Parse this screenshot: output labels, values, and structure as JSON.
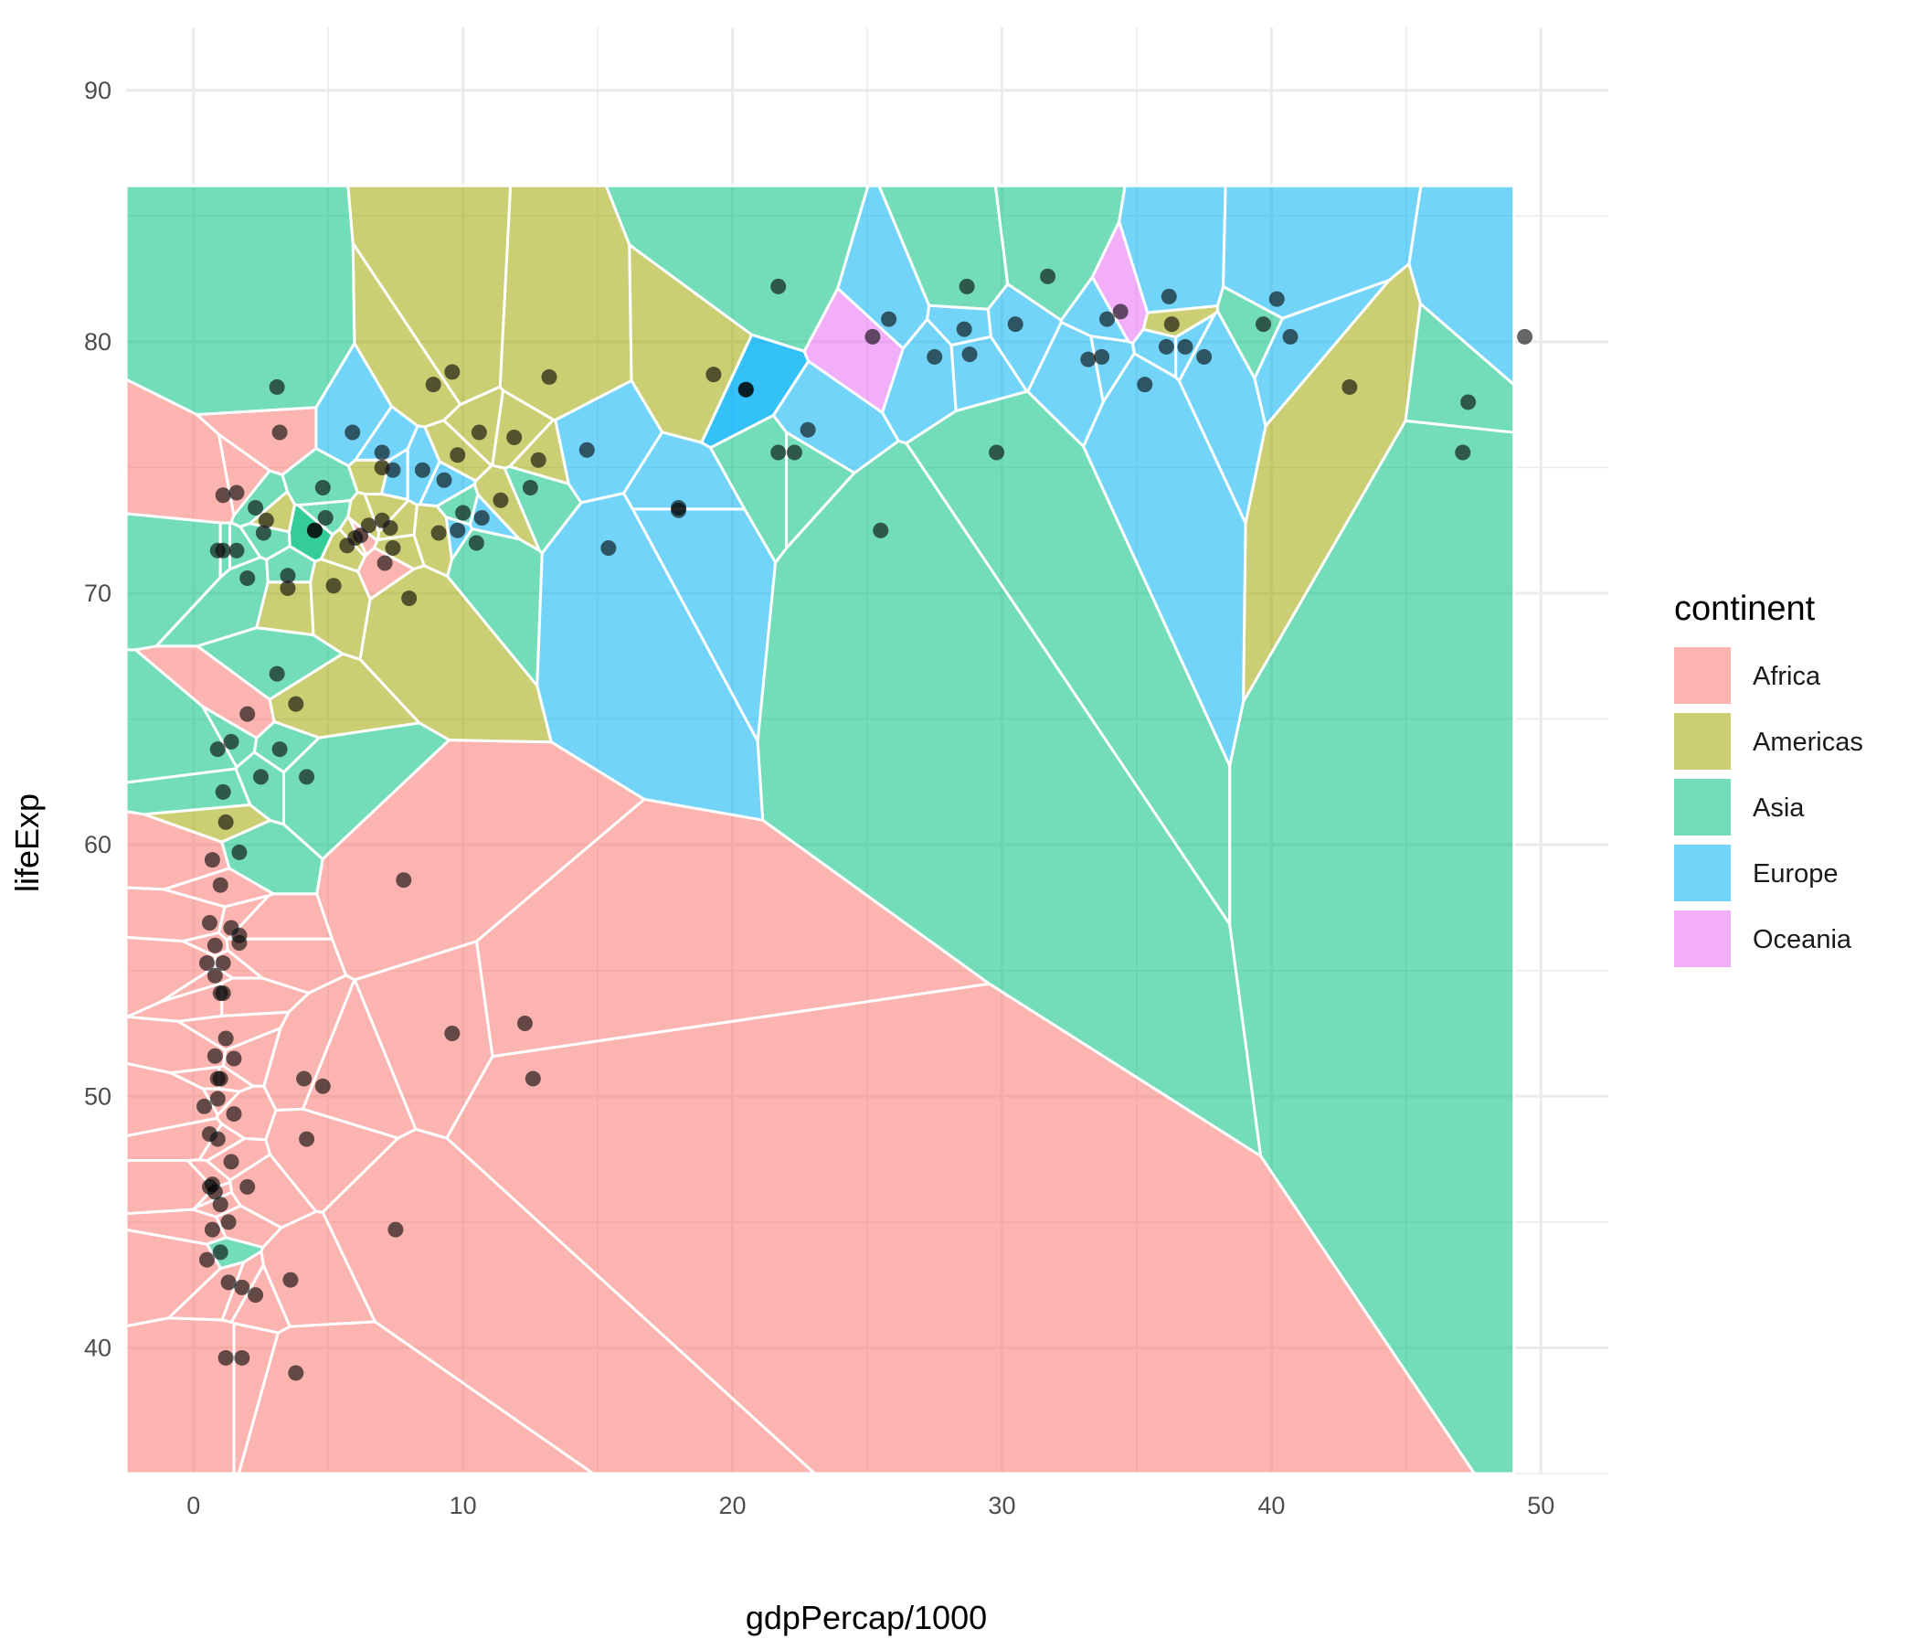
{
  "chart_data": {
    "type": "scatter",
    "subtype": "voronoi",
    "title": "",
    "xlabel": "gdpPercap/1000",
    "ylabel": "lifeExp",
    "xlim": [
      -2.5,
      52.5
    ],
    "ylim": [
      35,
      92.5
    ],
    "voronoi_bounds": {
      "x": [
        -2.5,
        49
      ],
      "y": [
        35,
        86.2
      ]
    },
    "x_ticks": [
      0,
      10,
      20,
      30,
      40,
      50
    ],
    "y_ticks": [
      40,
      50,
      60,
      70,
      80,
      90
    ],
    "grid": true,
    "legend": {
      "title": "continent",
      "position": "right"
    },
    "colors": {
      "Africa": "#F8766D",
      "Americas": "#A3A500",
      "Asia": "#00BF7D",
      "Europe": "#00B0F6",
      "Oceania": "#E76BF3",
      "cell_border": "#ffffff",
      "grid": "#ebebeb",
      "point": "#000000"
    },
    "series": [
      {
        "name": "Africa",
        "x": [
          6.2,
          3.6,
          1.4,
          12.6,
          1.2,
          0.4,
          4.8,
          0.7,
          1.0,
          2.0,
          7.1,
          0.8,
          0.7,
          1.4,
          1.1,
          0.9,
          0.6,
          1.0,
          0.7,
          0.8,
          1.1,
          0.8,
          1.0,
          0.6,
          3.8,
          7.8,
          2.0,
          4.2,
          12.3,
          1.8,
          1.7,
          1.5,
          1.6,
          0.9,
          0.8,
          7.5,
          0.5,
          1.3,
          0.6,
          0.9,
          1.3,
          1.0,
          1.2,
          9.6,
          1.7,
          0.5,
          2.3,
          4.1,
          1.5,
          1.8,
          3.2,
          1.1
        ],
        "y": [
          72.3,
          42.7,
          56.7,
          50.7,
          52.3,
          49.6,
          50.4,
          44.7,
          50.7,
          65.2,
          71.2,
          54.8,
          46.5,
          47.4,
          55.3,
          48.3,
          46.4,
          54.1,
          59.4,
          51.6,
          54.1,
          56.0,
          45.7,
          56.9,
          39.0,
          58.6,
          46.4,
          48.3,
          52.9,
          39.6,
          56.4,
          51.5,
          74.0,
          50.7,
          46.2,
          44.7,
          43.5,
          42.6,
          48.5,
          49.9,
          45.0,
          58.4,
          39.6,
          52.5,
          56.1,
          55.3,
          42.1,
          50.7,
          49.3,
          42.4,
          76.4,
          73.9
        ]
      },
      {
        "name": "Americas",
        "x": [
          12.8,
          3.8,
          9.1,
          36.3,
          13.2,
          7.0,
          9.6,
          8.9,
          6.0,
          7.0,
          5.7,
          5.2,
          1.2,
          3.5,
          7.3,
          11.9,
          2.7,
          9.8,
          7.4,
          19.3,
          8.0,
          42.9,
          10.6,
          11.4,
          6.5
        ],
        "y": [
          75.3,
          65.6,
          72.4,
          80.7,
          78.6,
          72.9,
          78.8,
          78.3,
          72.2,
          75.0,
          71.9,
          70.3,
          60.9,
          70.2,
          72.6,
          76.2,
          72.9,
          75.5,
          71.8,
          78.7,
          69.8,
          78.2,
          76.4,
          73.7,
          72.7
        ]
      },
      {
        "name": "Asia",
        "x": [
          1.0,
          29.8,
          1.4,
          1.7,
          4.9,
          39.7,
          2.5,
          3.5,
          0.9,
          21.7,
          25.5,
          31.7,
          4.5,
          47.3,
          10.5,
          12.5,
          3.1,
          1.1,
          0.9,
          22.3,
          47.1,
          2.6,
          3.2,
          1.1,
          10.0,
          3.1,
          2.0,
          21.7,
          1.6,
          4.2,
          28.7,
          4.8,
          4.5,
          2.3
        ],
        "y": [
          43.8,
          75.6,
          64.1,
          59.7,
          73.0,
          80.7,
          62.7,
          70.7,
          71.7,
          82.2,
          72.5,
          82.6,
          72.5,
          77.6,
          72.0,
          74.2,
          66.8,
          62.1,
          63.8,
          75.6,
          75.6,
          72.4,
          63.8,
          71.7,
          73.2,
          78.2,
          70.6,
          75.6,
          71.7,
          62.7,
          82.2,
          74.2,
          72.5,
          73.4
        ]
      },
      {
        "name": "Europe",
        "x": [
          5.9,
          36.1,
          33.7,
          7.4,
          10.7,
          14.6,
          22.8,
          35.3,
          33.2,
          30.5,
          27.5,
          18.0,
          20.5,
          36.2,
          40.7,
          28.6,
          9.3,
          36.8,
          49.4,
          9.8,
          15.4,
          20.5,
          25.8,
          33.9,
          40.2,
          7.0,
          18.0,
          28.8,
          37.5,
          8.5
        ],
        "y": [
          76.4,
          79.8,
          79.4,
          74.9,
          73.0,
          75.7,
          76.5,
          78.3,
          79.3,
          80.7,
          79.4,
          73.3,
          78.1,
          81.8,
          80.2,
          80.5,
          74.5,
          79.8,
          80.2,
          72.5,
          71.8,
          78.1,
          80.9,
          80.9,
          81.7,
          75.6,
          73.4,
          79.5,
          79.4,
          74.9
        ]
      },
      {
        "name": "Oceania",
        "x": [
          34.4,
          25.2
        ],
        "y": [
          81.2,
          80.2
        ]
      }
    ]
  }
}
